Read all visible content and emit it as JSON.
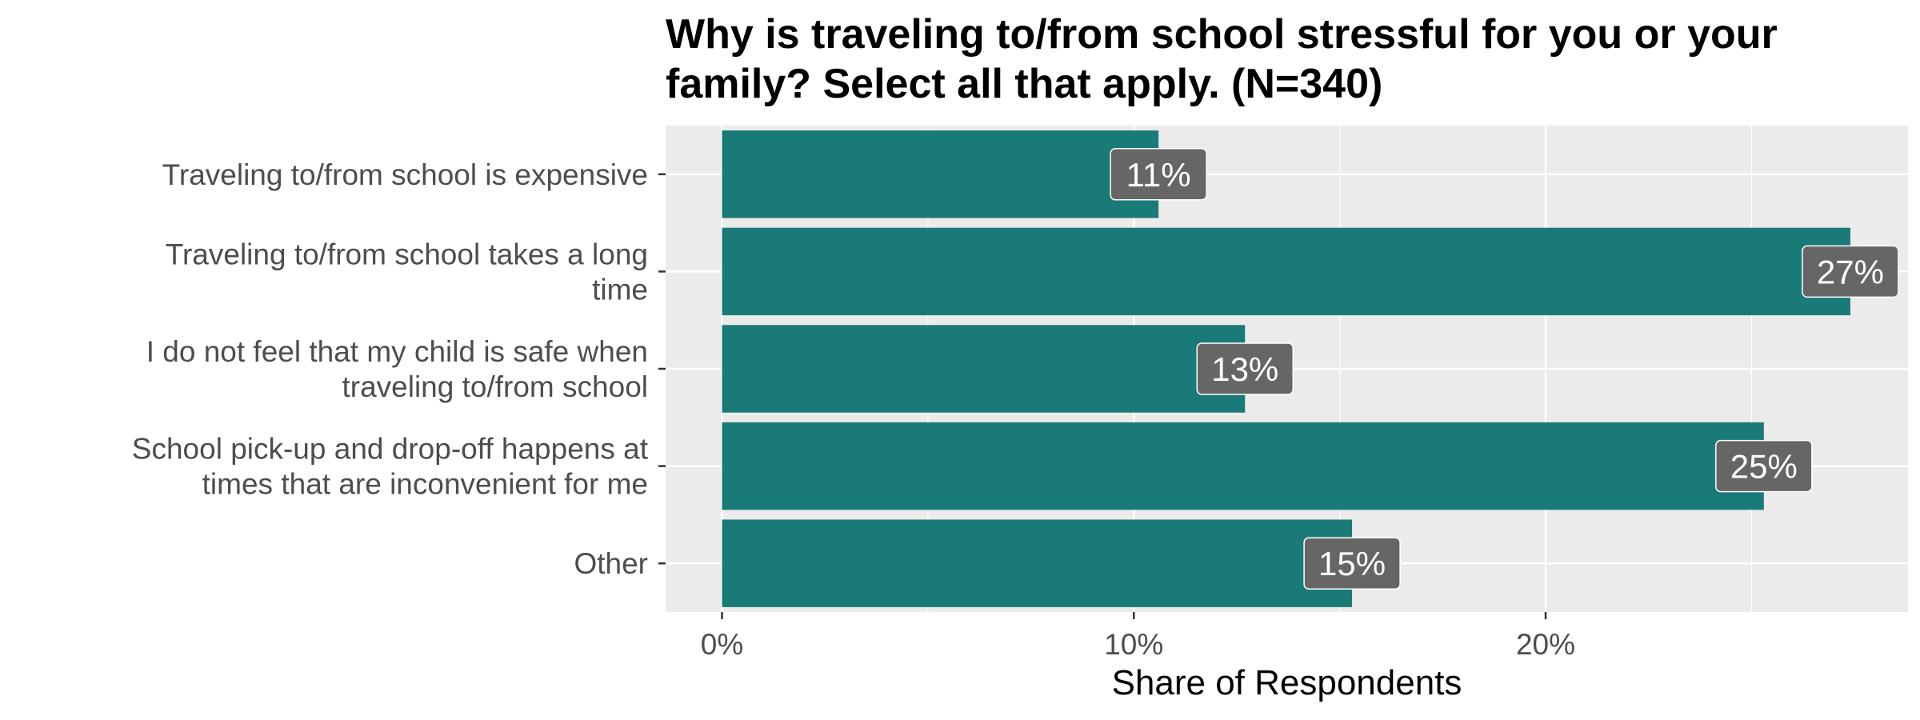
{
  "chart_data": {
    "type": "bar",
    "orientation": "horizontal",
    "title": "Why is traveling to/from school stressful for you or your family? Select all that apply. (N=340)",
    "title_lines": [
      "Why is traveling to/from school stressful for you or your",
      "family? Select all that apply. (N=340)"
    ],
    "xlabel": "Share of Respondents",
    "ylabel": "",
    "categories": [
      "Traveling to/from school is expensive",
      "Traveling to/from school takes a long time",
      "I do not feel that my child is safe when traveling to/from school",
      "School pick-up and drop-off happens at times that are inconvenient for me",
      "Other"
    ],
    "category_lines": [
      [
        "Traveling to/from school is expensive"
      ],
      [
        "Traveling to/from school takes a long",
        "time"
      ],
      [
        "I do not feel that my child is safe when",
        "traveling to/from school"
      ],
      [
        "School pick-up and drop-off happens at",
        "times that are inconvenient for me"
      ],
      [
        "Other"
      ]
    ],
    "values": [
      10.6,
      27.4,
      12.7,
      25.3,
      15.3
    ],
    "data_labels": [
      "11%",
      "27%",
      "13%",
      "25%",
      "15%"
    ],
    "xlim": [
      -1.37,
      28.8
    ],
    "x_ticks": [
      0,
      10,
      20
    ],
    "x_tick_labels": [
      "0%",
      "10%",
      "20%"
    ],
    "grid": true,
    "legend": "none",
    "colors": {
      "bar": "#1a7a77",
      "panel_background": "#ebebeb",
      "grid": "#ffffff",
      "label_box": "#666666",
      "label_text": "#ffffff"
    }
  }
}
